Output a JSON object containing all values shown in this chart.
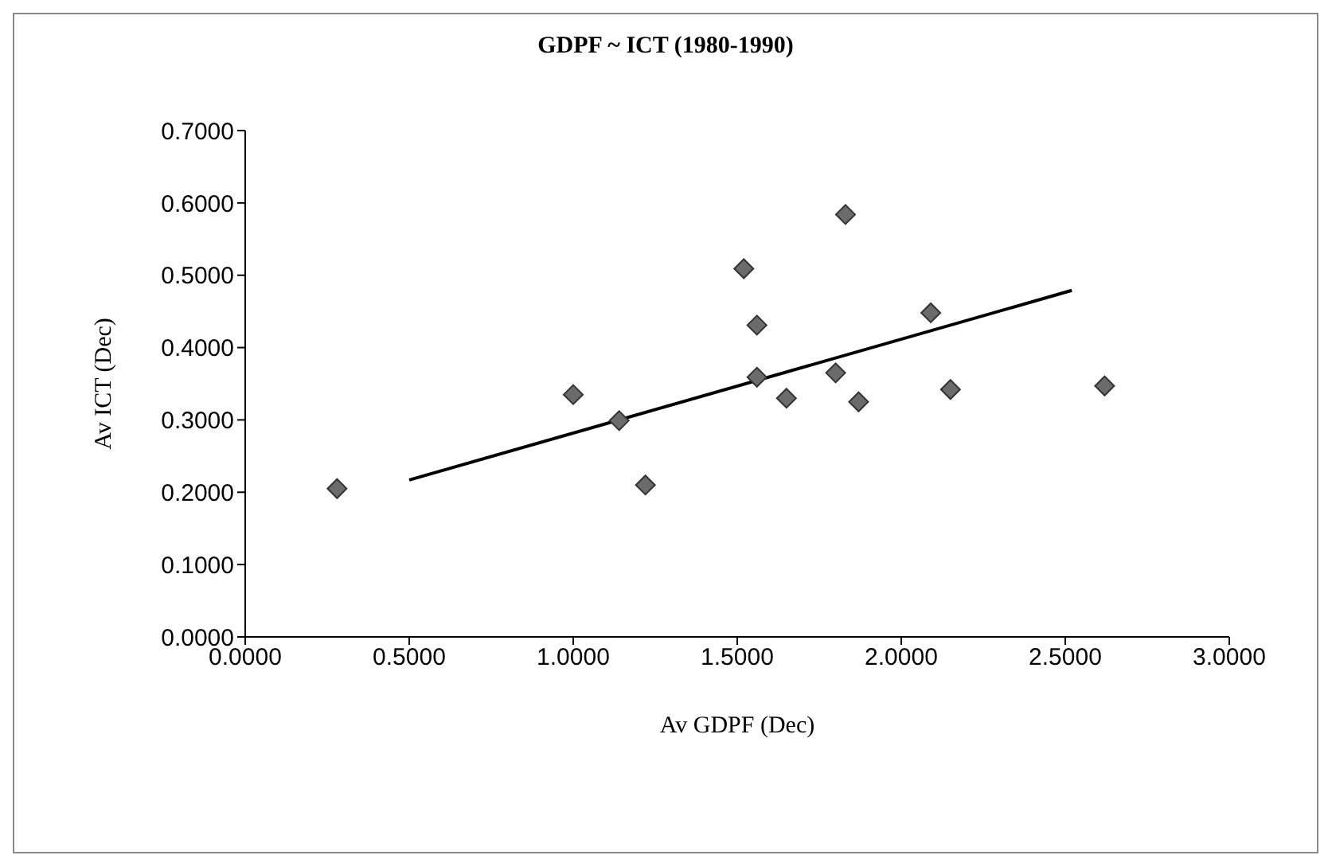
{
  "chart_data": {
    "type": "scatter",
    "title": "GDPF ~ ICT (1980-1990)",
    "xlabel": "Av GDPF (Dec)",
    "ylabel": "Av ICT  (Dec)",
    "x": [
      0.28,
      1.0,
      1.14,
      1.22,
      1.52,
      1.56,
      1.56,
      1.65,
      1.8,
      1.83,
      1.87,
      2.09,
      2.15,
      2.62
    ],
    "series": [
      {
        "color": "#6b6b6b",
        "marker": "diamond",
        "values": [
          0.205,
          0.335,
          0.299,
          0.21,
          0.509,
          0.431,
          0.359,
          0.33,
          0.365,
          0.584,
          0.325,
          0.448,
          0.342,
          0.347
        ]
      },
      {
        "type": "line",
        "color": "#000000",
        "marker": "none",
        "x": [
          0.5,
          2.52
        ],
        "values": [
          0.217,
          0.479
        ]
      }
    ],
    "xlim": [
      0,
      3
    ],
    "xticks": [
      {
        "value": 0,
        "label": "0.0000"
      },
      {
        "value": 0.5,
        "label": "0.5000"
      },
      {
        "value": 1,
        "label": "1.0000"
      },
      {
        "value": 1.5,
        "label": "1.5000"
      },
      {
        "value": 2,
        "label": "2.0000"
      },
      {
        "value": 2.5,
        "label": "2.5000"
      },
      {
        "value": 3,
        "label": "3.0000"
      }
    ],
    "ylim": [
      0,
      0.7
    ],
    "yticks": [
      {
        "value": 0,
        "label": "0.0000"
      },
      {
        "value": 0.1,
        "label": "0.1000"
      },
      {
        "value": 0.2,
        "label": "0.2000"
      },
      {
        "value": 0.3,
        "label": "0.3000"
      },
      {
        "value": 0.4,
        "label": "0.4000"
      },
      {
        "value": 0.5,
        "label": "0.5000"
      },
      {
        "value": 0.6,
        "label": "0.6000"
      },
      {
        "value": 0.7,
        "label": "0.7000"
      }
    ],
    "grid": false,
    "legend": false
  }
}
